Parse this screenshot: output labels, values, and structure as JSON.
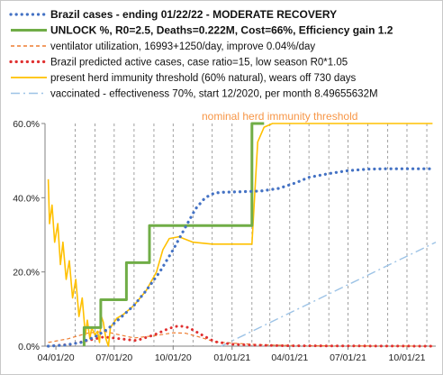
{
  "chart_data": {
    "type": "line",
    "title": "",
    "xlabel": "",
    "ylabel": "",
    "x_ticks": [
      "04/01/20",
      "07/01/20",
      "10/01/20",
      "01/01/21",
      "04/01/21",
      "07/01/21",
      "10/01/21"
    ],
    "xlim": [
      "2020-03-15",
      "2021-11-15"
    ],
    "y_ticks": [
      "0.0%",
      "20.0%",
      "40.0%",
      "60.0%"
    ],
    "ylim": [
      0,
      60
    ],
    "y_unit": "percent",
    "grid": "vertical dashed",
    "legend_position": "top",
    "legend": [
      {
        "key": "cases",
        "label": "Brazil cases - ending 01/22/22  - MODERATE RECOVERY",
        "color": "#4472c4",
        "style": "dotted",
        "bold": true
      },
      {
        "key": "unlock",
        "label": "UNLOCK %, R0=2.5,  Deaths=0.222M, Cost=66%, Efficiency gain 1.2",
        "color": "#70ad47",
        "style": "solid",
        "bold": true
      },
      {
        "key": "ventilator",
        "label": "ventilator utilization,  16993+1250/day, improve 0.04%/day",
        "color": "#ed7d31",
        "style": "dashed",
        "bold": false
      },
      {
        "key": "predicted",
        "label": "Brazil predicted active cases, case ratio=15, low season R0*1.05",
        "color": "#e03030",
        "style": "dotted",
        "bold": false
      },
      {
        "key": "herd",
        "label": "present herd immunity threshold (60% natural), wears off 730 days",
        "color": "#ffc000",
        "style": "solid",
        "bold": false
      },
      {
        "key": "vaccinated",
        "label": "vaccinated - effectiveness 70%, start 12/2020, per month 8.49655632M",
        "color": "#9dc3e6",
        "style": "dashdot",
        "bold": false
      }
    ],
    "annotation": {
      "text": "nominal herd immunity threshold",
      "value": 60,
      "color": "#f79646"
    },
    "series": [
      {
        "name": "Brazil cases - ending 01/22/22  - MODERATE RECOVERY",
        "key": "cases",
        "points": [
          [
            "2020-03-20",
            0
          ],
          [
            "2020-04-15",
            0.3
          ],
          [
            "2020-05-10",
            1
          ],
          [
            "2020-06-01",
            2.5
          ],
          [
            "2020-06-20",
            4.5
          ],
          [
            "2020-07-10",
            7.5
          ],
          [
            "2020-08-01",
            11
          ],
          [
            "2020-08-20",
            15
          ],
          [
            "2020-09-10",
            20
          ],
          [
            "2020-10-01",
            26
          ],
          [
            "2020-10-20",
            32
          ],
          [
            "2020-11-05",
            37
          ],
          [
            "2020-11-20",
            40
          ],
          [
            "2020-12-05",
            41.3
          ],
          [
            "2020-12-20",
            41.5
          ],
          [
            "2021-01-15",
            41.6
          ],
          [
            "2021-02-15",
            41.8
          ],
          [
            "2021-03-15",
            42.5
          ],
          [
            "2021-04-10",
            44
          ],
          [
            "2021-05-01",
            45.5
          ],
          [
            "2021-06-01",
            46.5
          ],
          [
            "2021-07-01",
            47.3
          ],
          [
            "2021-08-01",
            47.7
          ],
          [
            "2021-09-01",
            47.8
          ],
          [
            "2021-10-01",
            47.8
          ],
          [
            "2021-11-10",
            47.8
          ]
        ]
      },
      {
        "name": "UNLOCK %, R0=2.5,  Deaths=0.222M, Cost=66%, Efficiency gain 1.2",
        "key": "unlock",
        "points": [
          [
            "2020-05-15",
            0
          ],
          [
            "2020-05-15",
            5
          ],
          [
            "2020-06-10",
            5
          ],
          [
            "2020-06-10",
            12.5
          ],
          [
            "2020-07-20",
            12.5
          ],
          [
            "2020-07-20",
            22.5
          ],
          [
            "2020-08-25",
            22.5
          ],
          [
            "2020-08-25",
            32.5
          ],
          [
            "2020-11-25",
            32.5
          ],
          [
            "2020-11-25",
            32.5
          ],
          [
            "2021-02-01",
            32.5
          ],
          [
            "2021-02-01",
            60
          ],
          [
            "2021-02-20",
            60
          ]
        ]
      },
      {
        "name": "ventilator utilization,  16993+1250/day, improve 0.04%/day",
        "key": "ventilator",
        "points": [
          [
            "2020-03-20",
            1
          ],
          [
            "2020-04-20",
            2
          ],
          [
            "2020-05-20",
            3.5
          ],
          [
            "2020-06-15",
            4
          ],
          [
            "2020-07-05",
            3.2
          ],
          [
            "2020-08-01",
            2.2
          ],
          [
            "2020-09-01",
            2.8
          ],
          [
            "2020-10-01",
            3.6
          ],
          [
            "2020-10-20",
            3.5
          ],
          [
            "2020-11-10",
            2.5
          ],
          [
            "2020-12-05",
            1.2
          ],
          [
            "2021-01-01",
            0.8
          ],
          [
            "2021-02-01",
            0.5
          ],
          [
            "2021-03-01",
            0.3
          ],
          [
            "2021-05-01",
            0.1
          ],
          [
            "2021-11-10",
            0
          ]
        ]
      },
      {
        "name": "Brazil predicted active cases, case ratio=15, low season R0*1.05",
        "key": "predicted",
        "points": [
          [
            "2020-03-20",
            0
          ],
          [
            "2020-04-25",
            0.5
          ],
          [
            "2020-05-20",
            1.5
          ],
          [
            "2020-06-15",
            2.5
          ],
          [
            "2020-07-10",
            2
          ],
          [
            "2020-08-05",
            1.5
          ],
          [
            "2020-09-01",
            3
          ],
          [
            "2020-09-25",
            4.8
          ],
          [
            "2020-10-10",
            5.5
          ],
          [
            "2020-10-25",
            5
          ],
          [
            "2020-11-15",
            3
          ],
          [
            "2020-12-05",
            1.2
          ],
          [
            "2021-01-01",
            0.5
          ],
          [
            "2021-02-01",
            0.3
          ],
          [
            "2021-04-01",
            0.1
          ],
          [
            "2021-11-10",
            0
          ]
        ]
      },
      {
        "name": "present herd immunity threshold (60% natural), wears off 730 days",
        "key": "herd",
        "points": [
          [
            "2020-03-20",
            45
          ],
          [
            "2020-03-22",
            33
          ],
          [
            "2020-03-26",
            38
          ],
          [
            "2020-03-30",
            28
          ],
          [
            "2020-04-04",
            33
          ],
          [
            "2020-04-08",
            22
          ],
          [
            "2020-04-12",
            28
          ],
          [
            "2020-04-17",
            18
          ],
          [
            "2020-04-22",
            23
          ],
          [
            "2020-04-27",
            13
          ],
          [
            "2020-05-02",
            18
          ],
          [
            "2020-05-07",
            8
          ],
          [
            "2020-05-12",
            13
          ],
          [
            "2020-05-17",
            3
          ],
          [
            "2020-05-20",
            7
          ],
          [
            "2020-05-24",
            2
          ],
          [
            "2020-05-27",
            5
          ],
          [
            "2020-06-01",
            3
          ],
          [
            "2020-06-05",
            4
          ],
          [
            "2020-06-08",
            1
          ],
          [
            "2020-06-11",
            8
          ],
          [
            "2020-06-14",
            6.5
          ],
          [
            "2020-06-18",
            2
          ],
          [
            "2020-06-22",
            0
          ],
          [
            "2020-06-25",
            5
          ],
          [
            "2020-07-05",
            7.5
          ],
          [
            "2020-07-15",
            8.5
          ],
          [
            "2020-08-01",
            11
          ],
          [
            "2020-08-20",
            15
          ],
          [
            "2020-09-05",
            20
          ],
          [
            "2020-09-15",
            26
          ],
          [
            "2020-09-25",
            29
          ],
          [
            "2020-10-10",
            29.5
          ],
          [
            "2020-11-01",
            28
          ],
          [
            "2020-12-01",
            27.5
          ],
          [
            "2021-01-15",
            27.5
          ],
          [
            "2021-02-01",
            27.5
          ],
          [
            "2021-02-05",
            40
          ],
          [
            "2021-02-10",
            55
          ],
          [
            "2021-02-20",
            59
          ],
          [
            "2021-03-05",
            60
          ],
          [
            "2021-11-10",
            60
          ]
        ]
      },
      {
        "name": "vaccinated - effectiveness 70%, start 12/2020, per month 8.49655632M",
        "key": "vaccinated",
        "points": [
          [
            "2020-12-15",
            0
          ],
          [
            "2021-11-15",
            28
          ]
        ]
      }
    ]
  }
}
